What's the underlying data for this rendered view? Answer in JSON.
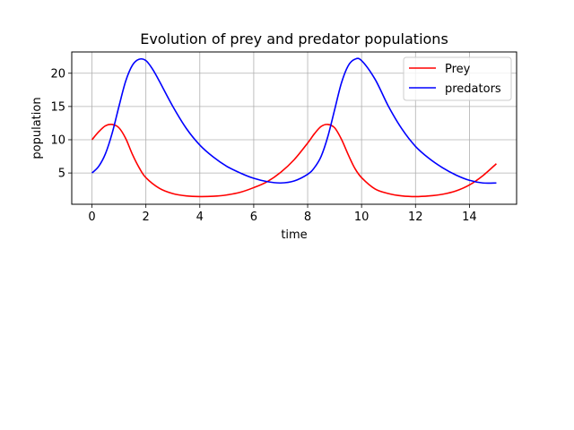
{
  "chart_data": {
    "type": "line",
    "title": "Evolution of prey and predator populations",
    "xlabel": "time",
    "ylabel": "population",
    "xlim": [
      -0.75,
      15.75
    ],
    "ylim": [
      0.3,
      23.2
    ],
    "xticks": [
      0,
      2,
      4,
      6,
      8,
      10,
      12,
      14
    ],
    "yticks": [
      5,
      10,
      15,
      20
    ],
    "grid": true,
    "legend_position": "top-right",
    "series": [
      {
        "name": "Prey",
        "color": "#ff0000",
        "x": [
          0,
          0.25,
          0.5,
          0.75,
          1.0,
          1.25,
          1.5,
          1.75,
          2.0,
          2.5,
          3.0,
          3.5,
          4.0,
          4.5,
          5.0,
          5.5,
          6.0,
          6.5,
          7.0,
          7.5,
          8.0,
          8.25,
          8.5,
          8.75,
          9.0,
          9.25,
          9.5,
          9.75,
          10.0,
          10.5,
          11.0,
          11.5,
          12.0,
          12.5,
          13.0,
          13.5,
          14.0,
          14.5,
          15.0
        ],
        "y": [
          10.0,
          11.2,
          12.1,
          12.3,
          11.8,
          10.2,
          7.8,
          5.8,
          4.3,
          2.7,
          1.9,
          1.55,
          1.45,
          1.5,
          1.7,
          2.1,
          2.8,
          3.7,
          5.1,
          7.0,
          9.5,
          10.9,
          12.0,
          12.3,
          11.8,
          10.1,
          7.8,
          5.7,
          4.3,
          2.6,
          1.9,
          1.55,
          1.45,
          1.55,
          1.8,
          2.3,
          3.2,
          4.6,
          6.4
        ]
      },
      {
        "name": "predators",
        "color": "#0000ff",
        "x": [
          0,
          0.25,
          0.5,
          0.75,
          1.0,
          1.25,
          1.5,
          1.75,
          2.0,
          2.25,
          2.5,
          3.0,
          3.5,
          4.0,
          4.5,
          5.0,
          5.5,
          6.0,
          6.5,
          7.0,
          7.5,
          8.0,
          8.25,
          8.5,
          8.75,
          9.0,
          9.25,
          9.5,
          9.75,
          10.0,
          10.5,
          11.0,
          11.5,
          12.0,
          12.5,
          13.0,
          13.5,
          14.0,
          14.5,
          15.0
        ],
        "y": [
          5.0,
          6.0,
          7.9,
          11.0,
          15.0,
          18.8,
          21.2,
          22.1,
          21.9,
          20.6,
          18.8,
          15.0,
          11.7,
          9.2,
          7.4,
          6.0,
          5.0,
          4.2,
          3.7,
          3.5,
          3.8,
          4.8,
          5.8,
          7.5,
          10.5,
          14.5,
          18.5,
          21.1,
          22.1,
          21.9,
          19.1,
          15.0,
          11.6,
          9.0,
          7.2,
          5.8,
          4.7,
          3.9,
          3.5,
          3.5
        ]
      }
    ]
  }
}
